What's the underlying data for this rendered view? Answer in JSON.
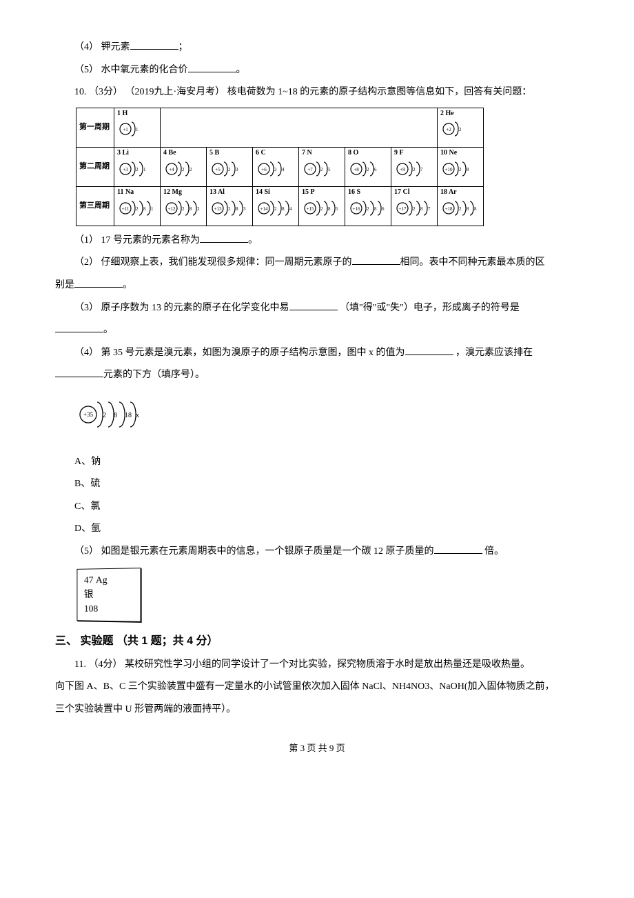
{
  "q4": "（4） 钾元素",
  "q4_tail": "；",
  "q5": "（5） 水中氧元素的化合价",
  "q5_tail": "。",
  "q10_lead": "10. （3分） （2019九上·海安月考） 核电荷数为 1~18 的元素的原子结构示意图等信息如下，回答有关问题：",
  "ptable": {
    "row_headers": [
      "第一周期",
      "第二周期",
      "第三周期"
    ],
    "row1": [
      {
        "n": "1",
        "s": "H",
        "p": 1,
        "e": [
          1
        ]
      },
      null,
      null,
      null,
      null,
      null,
      null,
      {
        "n": "2",
        "s": "He",
        "p": 2,
        "e": [
          2
        ]
      }
    ],
    "row2": [
      {
        "n": "3",
        "s": "Li",
        "p": 3,
        "e": [
          2,
          1
        ]
      },
      {
        "n": "4",
        "s": "Be",
        "p": 4,
        "e": [
          2,
          2
        ]
      },
      {
        "n": "5",
        "s": "B",
        "p": 5,
        "e": [
          2,
          3
        ]
      },
      {
        "n": "6",
        "s": "C",
        "p": 6,
        "e": [
          2,
          4
        ]
      },
      {
        "n": "7",
        "s": "N",
        "p": 7,
        "e": [
          2,
          5
        ]
      },
      {
        "n": "8",
        "s": "O",
        "p": 8,
        "e": [
          2,
          6
        ]
      },
      {
        "n": "9",
        "s": "F",
        "p": 9,
        "e": [
          2,
          7
        ]
      },
      {
        "n": "10",
        "s": "Ne",
        "p": 10,
        "e": [
          2,
          8
        ]
      }
    ],
    "row3": [
      {
        "n": "11",
        "s": "Na",
        "p": 11,
        "e": [
          2,
          8,
          1
        ]
      },
      {
        "n": "12",
        "s": "Mg",
        "p": 12,
        "e": [
          2,
          8,
          2
        ]
      },
      {
        "n": "13",
        "s": "Al",
        "p": 13,
        "e": [
          2,
          8,
          3
        ]
      },
      {
        "n": "14",
        "s": "Si",
        "p": 14,
        "e": [
          2,
          8,
          4
        ]
      },
      {
        "n": "15",
        "s": "P",
        "p": 15,
        "e": [
          2,
          8,
          5
        ]
      },
      {
        "n": "16",
        "s": "S",
        "p": 16,
        "e": [
          2,
          8,
          6
        ]
      },
      {
        "n": "17",
        "s": "Cl",
        "p": 17,
        "e": [
          2,
          8,
          7
        ]
      },
      {
        "n": "18",
        "s": "Ar",
        "p": 18,
        "e": [
          2,
          8,
          8
        ]
      }
    ]
  },
  "q10_1": "（1） 17 号元素的元素名称为",
  "q10_1_tail": "。",
  "q10_2a": "（2） 仔细观察上表，我们能发现很多规律：同一周期元素原子的",
  "q10_2b": "相同。表中不同种元素最本质的区",
  "q10_2c": "别是",
  "q10_2c_tail": "。",
  "q10_3a": "（3） 原子序数为 13 的元素的原子在化学变化中易",
  "q10_3b": " （填\"得\"或\"失\"）电子，形成离子的符号是",
  "q10_3_tail": "。",
  "q10_4a": "（4） 第 35 号元素是溴元素，如图为溴原子的原子结构示意图，图中 x 的值为",
  "q10_4b": " ，溴元素应该排在",
  "q10_4c": "元素的下方（填序号）。",
  "br_atom": {
    "p": 35,
    "e": [
      2,
      8,
      18,
      "x"
    ]
  },
  "optA": "A、钠",
  "optB": "B、硫",
  "optC": "C、氯",
  "optD": "D、氩",
  "q10_5": "（5） 如图是银元素在元素周期表中的信息，一个银原子质量是一个碳 12 原子质量的",
  "q10_5_tail": " 倍。",
  "ag_box": {
    "num": "47",
    "sym": "Ag",
    "name": "银",
    "mass": "108"
  },
  "sec3_heading": "三、 实验题 （共 1 题；共 4 分）",
  "q11a": "11. （4分） 某校研究性学习小组的同学设计了一个对比实验，探究物质溶于水时是放出热量还是吸收热量。",
  "q11b": "向下图 A、B、C 三个实验装置中盛有一定量水的小试管里依次加入固体 NaCl、NH4NO3、NaOH(加入固体物质之前，",
  "q11c": "三个实验装置中 U 形管两端的液面持平）。",
  "footer": "第 3 页 共 9 页"
}
